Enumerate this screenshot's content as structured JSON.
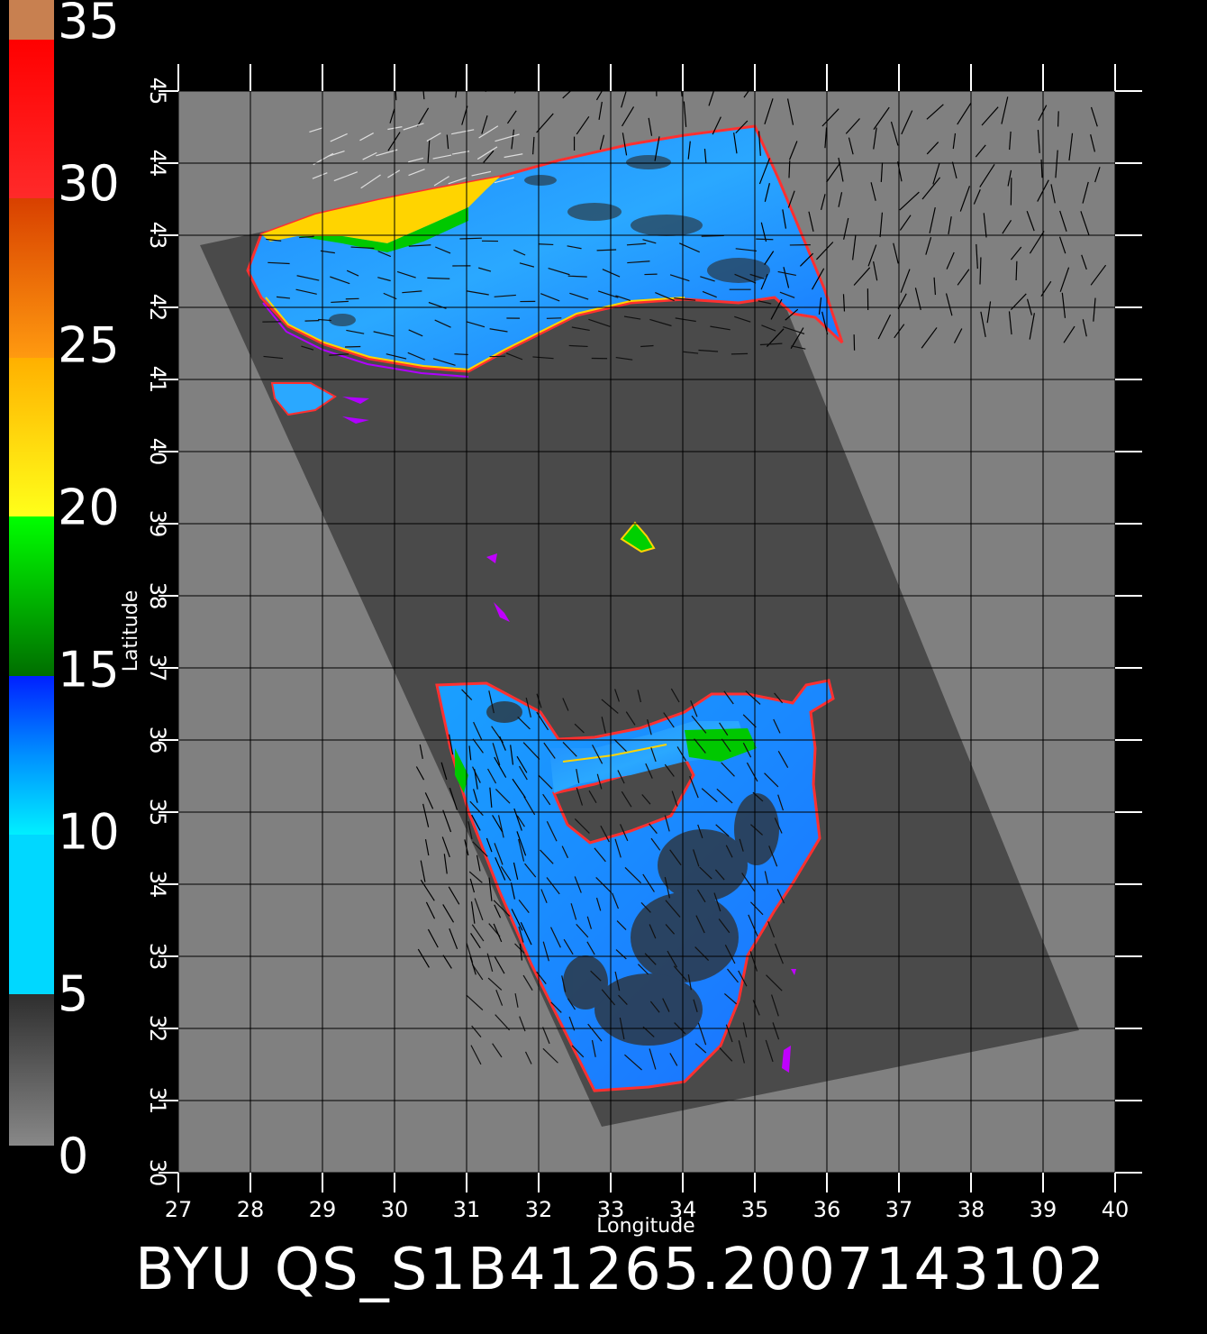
{
  "axes": {
    "xlabel": "Longitude",
    "ylabel": "Latitude",
    "lon_ticks": [
      27,
      28,
      29,
      30,
      31,
      32,
      33,
      34,
      35,
      36,
      37,
      38,
      39,
      40
    ],
    "lat_ticks": [
      30,
      31,
      32,
      33,
      34,
      35,
      36,
      37,
      38,
      39,
      40,
      41,
      42,
      43,
      44,
      45
    ],
    "lon_range": [
      27,
      40
    ],
    "lat_range": [
      30,
      45
    ],
    "grid": true
  },
  "colorbar": {
    "labels": [
      "0",
      "5",
      "10",
      "15",
      "20",
      "25",
      "30",
      "35"
    ],
    "values": [
      0,
      5,
      10,
      15,
      20,
      25,
      30,
      35
    ],
    "colors": {
      "gray_low": "#888888",
      "gray_high": "#303030",
      "cyan": "#00f0ff",
      "blue": "#0020ff",
      "green_dark": "#006e00",
      "green": "#00ff00",
      "yellow": "#ffff1a",
      "orange": "#ffb000",
      "orange_red": "#ff5500",
      "red": "#ff0000",
      "tan": "#c88050"
    }
  },
  "footer": {
    "title": "BYU  QS_S1B41265.2007143102"
  },
  "colors": {
    "background": "#000000",
    "land": "#808080",
    "swath": "#4a4a4a",
    "sea": "#1a9cff"
  }
}
